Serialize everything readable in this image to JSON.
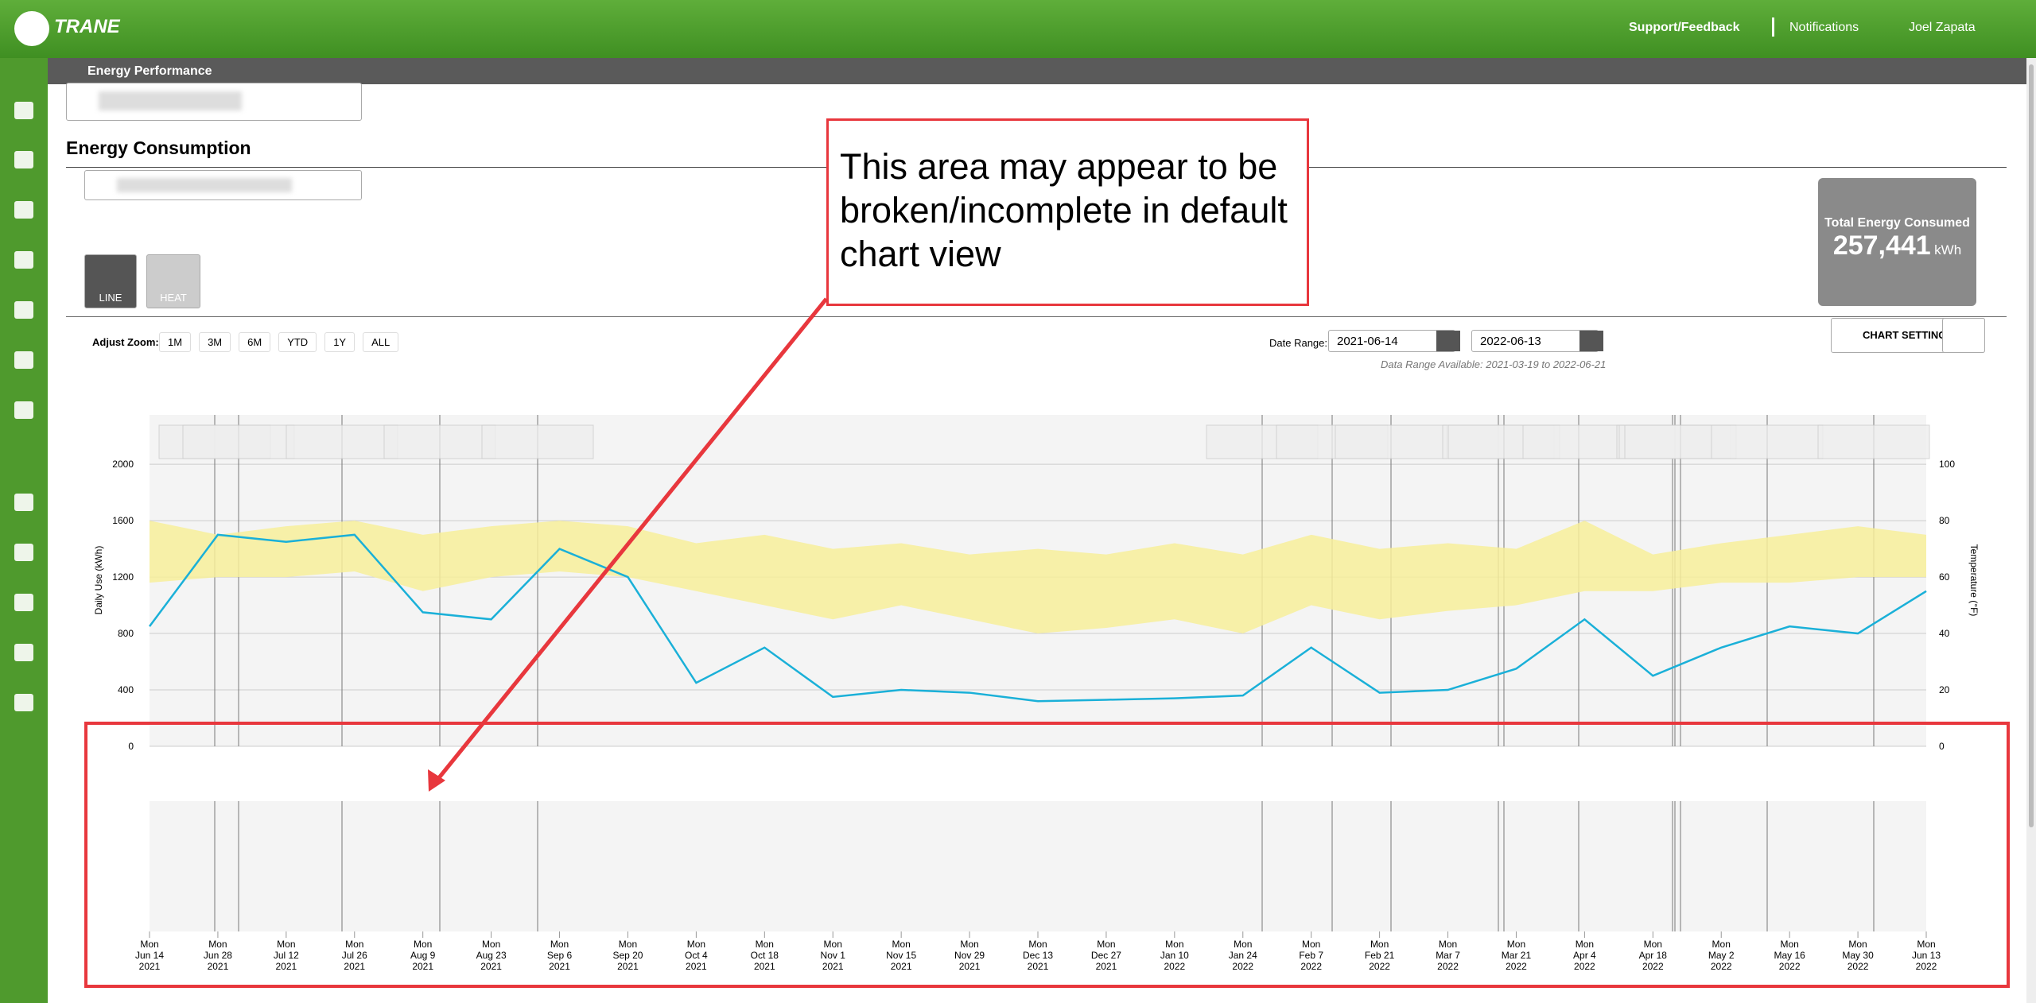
{
  "header": {
    "logo": "TRANE",
    "nav": [
      "Support/Feedback",
      "Notifications",
      "Joel Zapata"
    ]
  },
  "breadcrumb": "Energy Performance",
  "section_title": "Energy Consumption",
  "view_buttons": [
    "LINE",
    "HEAT"
  ],
  "total": {
    "label": "Total Energy Consumed",
    "value": "257,441",
    "unit": "kWh"
  },
  "zoom": {
    "label": "Adjust Zoom:",
    "options": [
      "1M",
      "3M",
      "6M",
      "YTD",
      "1Y",
      "ALL"
    ]
  },
  "date_range": {
    "label": "Date Range:",
    "start": "2021-06-14",
    "end": "2022-06-13",
    "available": "Data Range Available: 2021-03-19 to 2022-06-21"
  },
  "chart_settings": "CHART SETTINGS",
  "annotation": "This area may appear to be broken/incomplete in default chart view",
  "chart_data": {
    "type": "line",
    "ylabel": "Daily Use (kWh)",
    "y2label": "Temperature (°F)",
    "x": [
      "2021-06-14",
      "2021-06-28",
      "2021-07-12",
      "2021-07-26",
      "2021-08-09",
      "2021-08-23",
      "2021-09-06",
      "2021-09-20",
      "2021-10-04",
      "2021-10-18",
      "2021-11-01",
      "2021-11-15",
      "2021-11-29",
      "2021-12-13",
      "2021-12-27",
      "2022-01-10",
      "2022-01-24",
      "2022-02-07",
      "2022-02-21",
      "2022-03-07",
      "2022-03-21",
      "2022-04-04",
      "2022-04-18",
      "2022-05-02",
      "2022-05-16",
      "2022-05-30",
      "2022-06-13"
    ],
    "xlim": [
      "2021-06-14",
      "2022-06-13"
    ],
    "xticks": [
      {
        "value": "2021-06-14",
        "label": [
          "Mon",
          "Jun 14",
          "2021"
        ]
      },
      {
        "value": "2021-06-28",
        "label": [
          "Mon",
          "Jun 28",
          "2021"
        ]
      },
      {
        "value": "2021-07-12",
        "label": [
          "Mon",
          "Jul 12",
          "2021"
        ]
      },
      {
        "value": "2021-07-26",
        "label": [
          "Mon",
          "Jul 26",
          "2021"
        ]
      },
      {
        "value": "2021-08-09",
        "label": [
          "Mon",
          "Aug 9",
          "2021"
        ]
      },
      {
        "value": "2021-08-23",
        "label": [
          "Mon",
          "Aug 23",
          "2021"
        ]
      },
      {
        "value": "2021-09-06",
        "label": [
          "Mon",
          "Sep 6",
          "2021"
        ]
      },
      {
        "value": "2021-09-20",
        "label": [
          "Mon",
          "Sep 20",
          "2021"
        ]
      },
      {
        "value": "2021-10-04",
        "label": [
          "Mon",
          "Oct 4",
          "2021"
        ]
      },
      {
        "value": "2021-10-18",
        "label": [
          "Mon",
          "Oct 18",
          "2021"
        ]
      },
      {
        "value": "2021-11-01",
        "label": [
          "Mon",
          "Nov 1",
          "2021"
        ]
      },
      {
        "value": "2021-11-15",
        "label": [
          "Mon",
          "Nov 15",
          "2021"
        ]
      },
      {
        "value": "2021-11-29",
        "label": [
          "Mon",
          "Nov 29",
          "2021"
        ]
      },
      {
        "value": "2021-12-13",
        "label": [
          "Mon",
          "Dec 13",
          "2021"
        ]
      },
      {
        "value": "2021-12-27",
        "label": [
          "Mon",
          "Dec 27",
          "2021"
        ]
      },
      {
        "value": "2022-01-10",
        "label": [
          "Mon",
          "Jan 10",
          "2022"
        ]
      },
      {
        "value": "2022-01-24",
        "label": [
          "Mon",
          "Jan 24",
          "2022"
        ]
      },
      {
        "value": "2022-02-07",
        "label": [
          "Mon",
          "Feb 7",
          "2022"
        ]
      },
      {
        "value": "2022-02-21",
        "label": [
          "Mon",
          "Feb 21",
          "2022"
        ]
      },
      {
        "value": "2022-03-07",
        "label": [
          "Mon",
          "Mar 7",
          "2022"
        ]
      },
      {
        "value": "2022-03-21",
        "label": [
          "Mon",
          "Mar 21",
          "2022"
        ]
      },
      {
        "value": "2022-04-04",
        "label": [
          "Mon",
          "Apr 4",
          "2022"
        ]
      },
      {
        "value": "2022-04-18",
        "label": [
          "Mon",
          "Apr 18",
          "2022"
        ]
      },
      {
        "value": "2022-05-02",
        "label": [
          "Mon",
          "May 2",
          "2022"
        ]
      },
      {
        "value": "2022-05-16",
        "label": [
          "Mon",
          "May 16",
          "2022"
        ]
      },
      {
        "value": "2022-05-30",
        "label": [
          "Mon",
          "May 30",
          "2022"
        ]
      },
      {
        "value": "2022-06-13",
        "label": [
          "Mon",
          "Jun 13",
          "2022"
        ]
      }
    ],
    "ylim": [
      0,
      2350
    ],
    "yticks": [
      0,
      400,
      800,
      1200,
      1600,
      2000
    ],
    "y2lim": [
      0,
      117.5
    ],
    "y2ticks": [
      0,
      20,
      40,
      60,
      80,
      100
    ],
    "grid": true,
    "series": [
      {
        "color": "#1ab0d8",
        "values": [
          850,
          1500,
          1450,
          1500,
          950,
          900,
          1400,
          1200,
          450,
          700,
          350,
          400,
          380,
          320,
          330,
          340,
          360,
          700,
          380,
          400,
          550,
          900,
          500,
          700,
          850,
          800,
          1100
        ]
      }
    ],
    "band": {
      "color": "#f7ef9a",
      "axis": "y2",
      "low": [
        58,
        60,
        60,
        62,
        55,
        60,
        62,
        60,
        55,
        50,
        45,
        50,
        45,
        40,
        42,
        45,
        40,
        50,
        45,
        48,
        50,
        55,
        55,
        58,
        58,
        60,
        60
      ],
      "high": [
        80,
        75,
        78,
        80,
        75,
        78,
        80,
        78,
        72,
        75,
        70,
        72,
        68,
        70,
        68,
        72,
        68,
        75,
        70,
        72,
        70,
        80,
        68,
        72,
        75,
        78,
        75
      ]
    }
  }
}
